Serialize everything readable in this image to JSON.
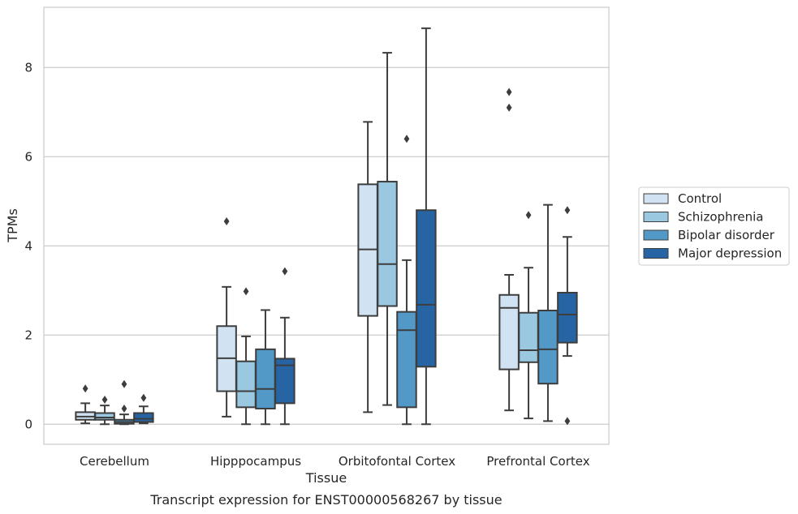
{
  "chart_data": {
    "type": "box",
    "xlabel": "Tissue",
    "ylabel": "TPMs",
    "caption": "Transcript expression for ENST00000568267 by tissue",
    "categories": [
      "Cerebellum",
      "Hipppocampus",
      "Orbitofontal Cortex",
      "Prefrontal Cortex"
    ],
    "ylim": [
      -0.45,
      9.35
    ],
    "yticks": [
      0,
      2,
      4,
      6,
      8
    ],
    "grid": "horizontal",
    "legend_position": "right",
    "series": [
      {
        "name": "Control",
        "color": "#d1e3f3",
        "boxes": [
          {
            "whislo": 0.02,
            "q1": 0.1,
            "med": 0.17,
            "q3": 0.27,
            "whishi": 0.47,
            "fliers": [
              0.8
            ]
          },
          {
            "whislo": 0.17,
            "q1": 0.74,
            "med": 1.48,
            "q3": 2.2,
            "whishi": 3.08,
            "fliers": [
              4.55
            ]
          },
          {
            "whislo": 0.27,
            "q1": 2.43,
            "med": 3.92,
            "q3": 5.38,
            "whishi": 6.78,
            "fliers": []
          },
          {
            "whislo": 0.31,
            "q1": 1.23,
            "med": 2.61,
            "q3": 2.9,
            "whishi": 3.35,
            "fliers": [
              7.1,
              7.45
            ]
          }
        ]
      },
      {
        "name": "Schizophrenia",
        "color": "#9ac8e1",
        "boxes": [
          {
            "whislo": 0.0,
            "q1": 0.1,
            "med": 0.15,
            "q3": 0.25,
            "whishi": 0.42,
            "fliers": [
              0.55
            ]
          },
          {
            "whislo": 0.0,
            "q1": 0.38,
            "med": 0.74,
            "q3": 1.41,
            "whishi": 1.97,
            "fliers": [
              2.98
            ]
          },
          {
            "whislo": 0.43,
            "q1": 2.65,
            "med": 3.59,
            "q3": 5.44,
            "whishi": 8.33,
            "fliers": []
          },
          {
            "whislo": 0.13,
            "q1": 1.39,
            "med": 1.66,
            "q3": 2.5,
            "whishi": 3.51,
            "fliers": [
              4.69
            ]
          }
        ]
      },
      {
        "name": "Bipolar disorder",
        "color": "#5299c8",
        "boxes": [
          {
            "whislo": 0.0,
            "q1": 0.01,
            "med": 0.05,
            "q3": 0.1,
            "whishi": 0.22,
            "fliers": [
              0.35,
              0.9
            ]
          },
          {
            "whislo": 0.0,
            "q1": 0.35,
            "med": 0.79,
            "q3": 1.68,
            "whishi": 2.56,
            "fliers": []
          },
          {
            "whislo": 0.0,
            "q1": 0.38,
            "med": 2.11,
            "q3": 2.52,
            "whishi": 3.68,
            "fliers": [
              6.4
            ]
          },
          {
            "whislo": 0.07,
            "q1": 0.91,
            "med": 1.68,
            "q3": 2.55,
            "whishi": 4.92,
            "fliers": []
          }
        ]
      },
      {
        "name": "Major depression",
        "color": "#2664a4",
        "boxes": [
          {
            "whislo": 0.02,
            "q1": 0.05,
            "med": 0.12,
            "q3": 0.25,
            "whishi": 0.4,
            "fliers": [
              0.59
            ]
          },
          {
            "whislo": 0.0,
            "q1": 0.47,
            "med": 1.32,
            "q3": 1.47,
            "whishi": 2.39,
            "fliers": [
              3.43
            ]
          },
          {
            "whislo": 0.0,
            "q1": 1.29,
            "med": 2.68,
            "q3": 4.8,
            "whishi": 8.88,
            "fliers": []
          },
          {
            "whislo": 1.53,
            "q1": 1.83,
            "med": 2.46,
            "q3": 2.95,
            "whishi": 4.2,
            "fliers": [
              0.07,
              4.8
            ]
          }
        ]
      }
    ]
  }
}
